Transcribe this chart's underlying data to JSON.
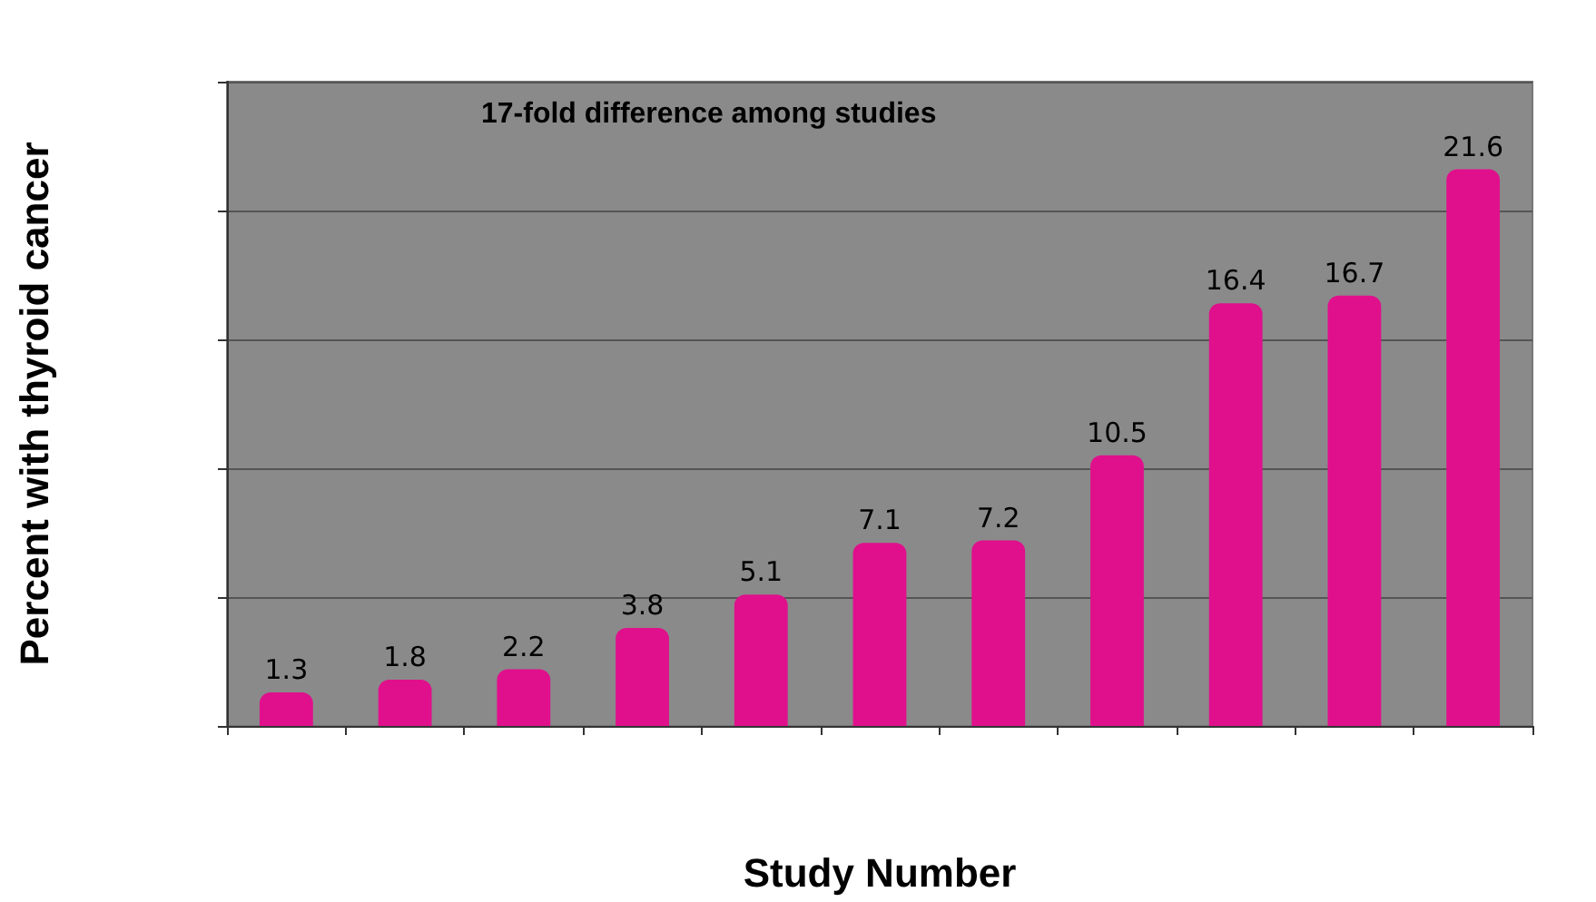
{
  "chart_data": {
    "type": "bar",
    "xlabel": "Study Number",
    "ylabel": "Percent with thyroid cancer",
    "annotations": [
      "17-fold difference among studies"
    ],
    "categories": [
      null,
      null,
      null,
      null,
      null,
      null,
      null,
      null,
      null,
      null,
      null
    ],
    "values": [
      1.3,
      1.8,
      2.2,
      3.8,
      5.1,
      7.1,
      7.2,
      10.5,
      16.4,
      16.7,
      21.6
    ],
    "color": "#e0108c",
    "ylim": [
      0,
      25
    ],
    "yticks": [
      {
        "value": 0,
        "label": null
      },
      {
        "value": 5,
        "label": null
      },
      {
        "value": 10,
        "label": null
      },
      {
        "value": 15,
        "label": null
      },
      {
        "value": 20,
        "label": null
      },
      {
        "value": 25,
        "label": null
      }
    ],
    "grid": "y",
    "data_labels": true
  }
}
